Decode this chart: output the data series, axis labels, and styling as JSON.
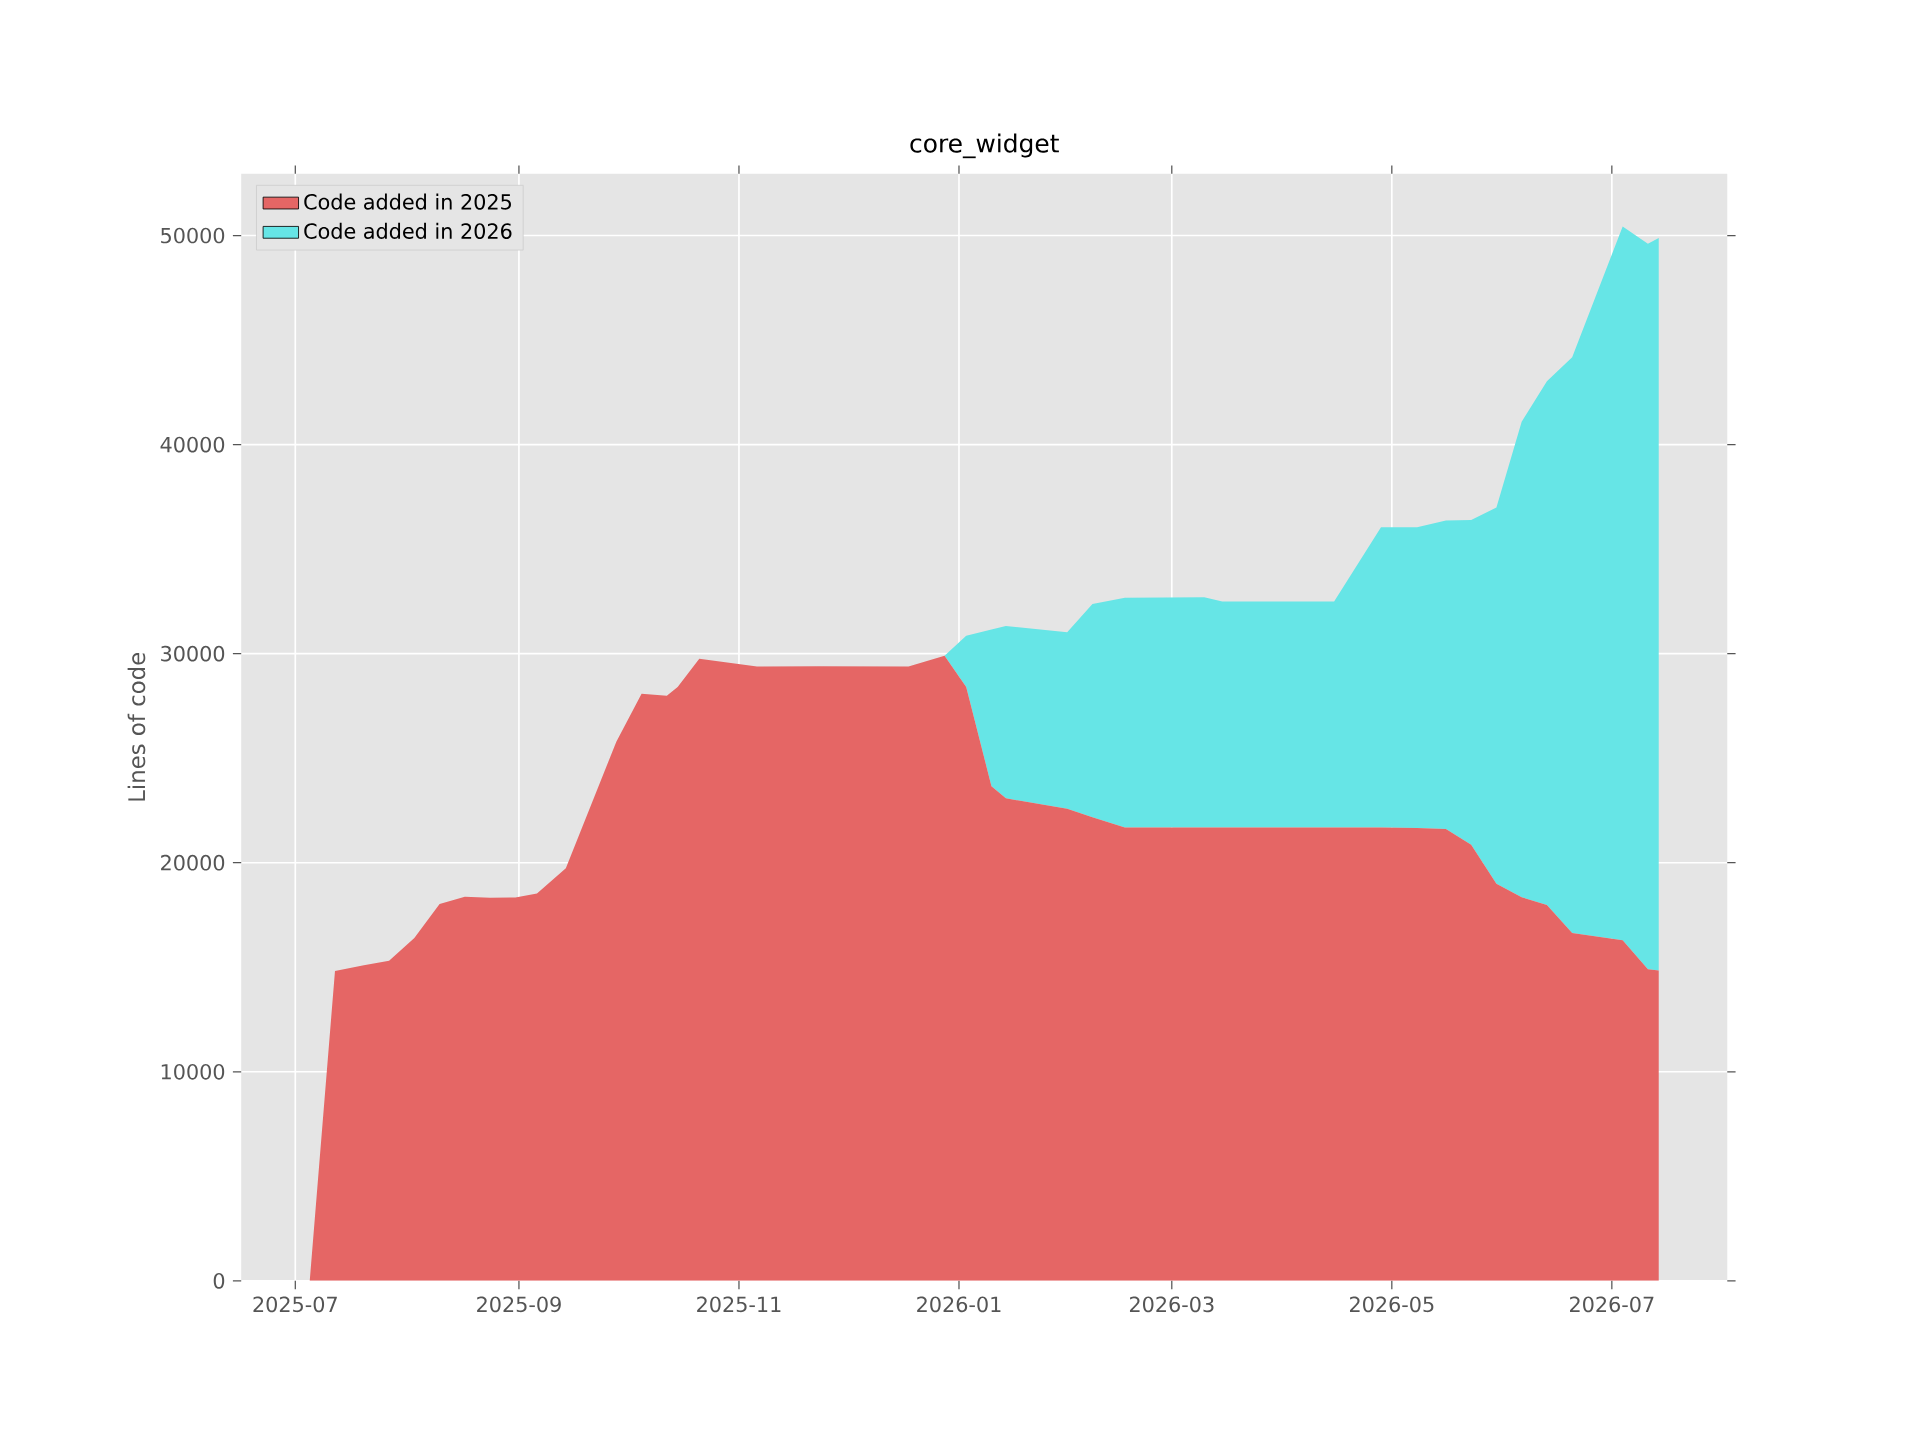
{
  "chart_data": {
    "type": "area",
    "title": "core_widget",
    "ylabel": "Lines of code",
    "stacked": true,
    "grid": true,
    "legend": "top left",
    "x": [
      "2025-07-05",
      "2025-07-12",
      "2025-07-20",
      "2025-07-27",
      "2025-08-03",
      "2025-08-10",
      "2025-08-17",
      "2025-08-24",
      "2025-08-31",
      "2025-09-06",
      "2025-09-14",
      "2025-09-28",
      "2025-10-05",
      "2025-10-12",
      "2025-10-15",
      "2025-10-21",
      "2025-11-06",
      "2025-11-23",
      "2025-12-18",
      "2025-12-28",
      "2026-01-03",
      "2026-01-10",
      "2026-01-14",
      "2026-01-31",
      "2026-02-07",
      "2026-02-16",
      "2026-03-10",
      "2026-03-15",
      "2026-04-15",
      "2026-04-28",
      "2026-05-08",
      "2026-05-16",
      "2026-05-23",
      "2026-05-30",
      "2026-06-06",
      "2026-06-13",
      "2026-06-20",
      "2026-07-04",
      "2026-07-11",
      "2026-07-14"
    ],
    "series": [
      {
        "name": "Code added in 2025",
        "color": "#e56665",
        "values": [
          0,
          14820,
          15100,
          15310,
          16400,
          18020,
          18370,
          18320,
          18340,
          18530,
          19730,
          25790,
          28080,
          27990,
          28410,
          29750,
          29380,
          29400,
          29380,
          29900,
          28400,
          23660,
          23080,
          22580,
          22180,
          21680,
          21680,
          21680,
          21680,
          21680,
          21660,
          21610,
          20860,
          18990,
          18350,
          17980,
          16640,
          16290,
          14900,
          14840
        ]
      },
      {
        "name": "Code added in 2026",
        "color": "#66e5e6",
        "values": [
          0,
          0,
          0,
          0,
          0,
          0,
          0,
          0,
          0,
          0,
          0,
          0,
          0,
          0,
          0,
          0,
          0,
          0,
          0,
          0,
          2450,
          7490,
          8240,
          8440,
          10190,
          10990,
          11020,
          10820,
          10820,
          14360,
          14380,
          14760,
          15530,
          18000,
          22740,
          25050,
          27540,
          34140,
          34700,
          35040
        ]
      }
    ],
    "xlim": [
      "2025-06-16",
      "2026-08-02"
    ],
    "ylim": [
      0,
      52950
    ],
    "xticks": [
      "2025-07",
      "2025-09",
      "2025-11",
      "2026-01",
      "2026-03",
      "2026-05",
      "2026-07"
    ],
    "yticks": [
      0,
      10000,
      20000,
      30000,
      40000,
      50000
    ]
  }
}
